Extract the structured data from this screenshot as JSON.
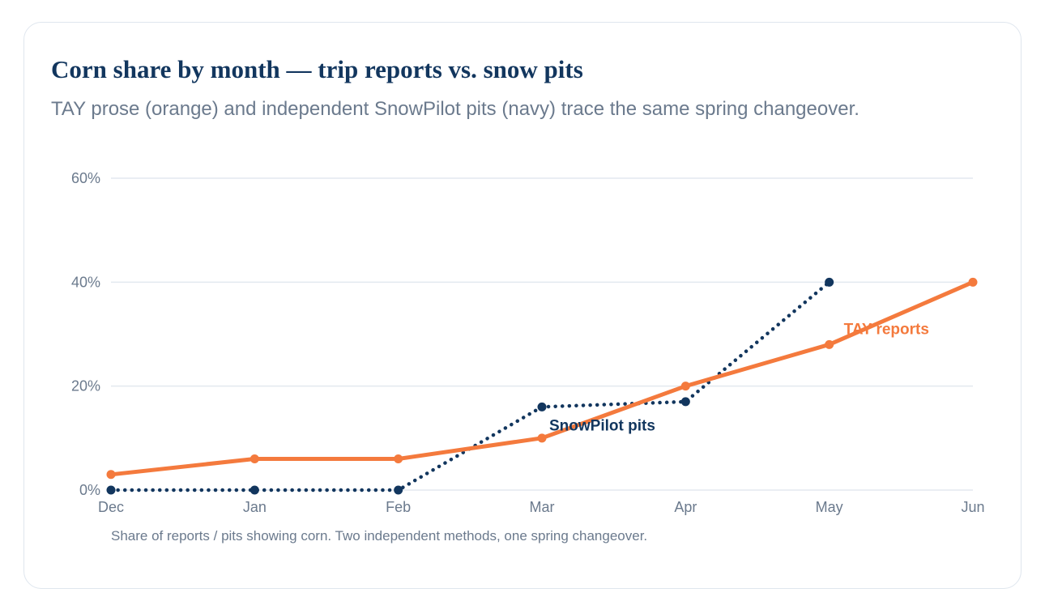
{
  "title": "Corn share by month — trip reports vs. snow pits",
  "subtitle": "TAY prose (orange) and independent SnowPilot pits (navy) trace the same spring changeover.",
  "note": "Share of reports / pits showing corn. Two independent methods, one spring changeover.",
  "colors": {
    "tay": "#f47a3d",
    "snowpilot": "#12365e",
    "grid": "#e3e9ef",
    "text_muted": "#6b7a8d"
  },
  "chart_data": {
    "type": "line",
    "categories": [
      "Dec",
      "Jan",
      "Feb",
      "Mar",
      "Apr",
      "May",
      "Jun"
    ],
    "ylim": [
      0,
      60
    ],
    "yticks": [
      0,
      20,
      40,
      60
    ],
    "ytick_labels": [
      "0%",
      "20%",
      "40%",
      "60%"
    ],
    "grid": true,
    "xlabel": "",
    "ylabel": "",
    "series": [
      {
        "name": "TAY reports",
        "color": "#f47a3d",
        "style": "solid",
        "values": [
          3,
          6,
          6,
          10,
          20,
          28,
          40
        ]
      },
      {
        "name": "SnowPilot pits",
        "color": "#12365e",
        "style": "dotted",
        "values": [
          0,
          0,
          0,
          16,
          17,
          40,
          null
        ]
      }
    ]
  }
}
